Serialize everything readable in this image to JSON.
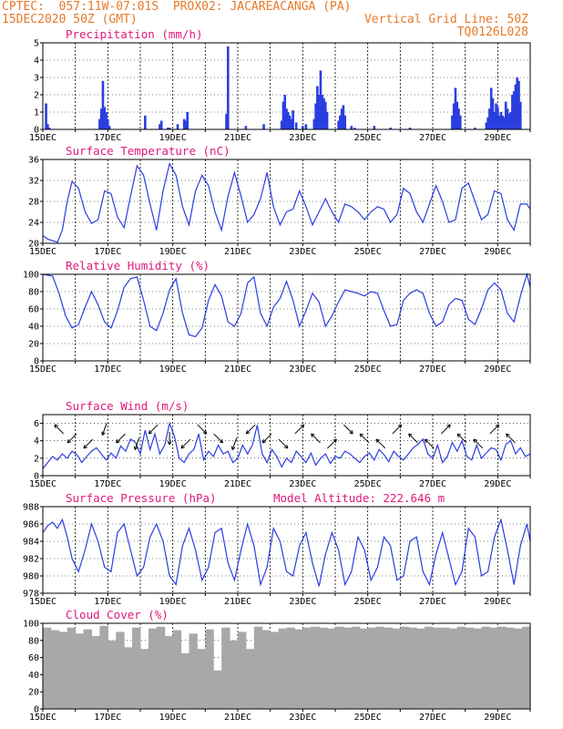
{
  "header": {
    "left_line1": "CPTEC:  057:11W-07:01S  PROX02: JACAREACANGA (PA)",
    "left_line2": "15DEC2020 50Z (GMT)",
    "right_line2": "Vertical Grid Line: 50Z",
    "right_line3": "TQ0126L028"
  },
  "colors": {
    "header": "#e8792a",
    "title": "#e0187a",
    "series": "#2a3ee0",
    "cloud": "#a8a8a8"
  },
  "chart_data": [
    {
      "type": "bar",
      "title": "Precipitation (mm/h)",
      "xlabels": [
        "15DEC",
        "17DEC",
        "19DEC",
        "21DEC",
        "23DEC",
        "25DEC",
        "27DEC",
        "29DEC"
      ],
      "x_range_days": [
        15,
        30
      ],
      "ylim": [
        0,
        5
      ],
      "yticks": [
        0,
        1,
        2,
        3,
        4,
        5
      ],
      "x": [
        15.1,
        15.15,
        15.2,
        16.75,
        16.8,
        16.85,
        16.9,
        16.95,
        17.0,
        17.05,
        18.15,
        18.6,
        18.65,
        18.85,
        18.9,
        19.15,
        19.35,
        19.4,
        19.45,
        20.65,
        20.7,
        21.25,
        21.8,
        22.35,
        22.4,
        22.45,
        22.5,
        22.55,
        22.6,
        22.65,
        22.7,
        22.8,
        23.0,
        23.1,
        23.35,
        23.4,
        23.45,
        23.5,
        23.55,
        23.6,
        23.65,
        23.7,
        23.75,
        24.1,
        24.15,
        24.2,
        24.25,
        24.3,
        24.5,
        24.6,
        25.2,
        25.7,
        26.3,
        27.6,
        27.65,
        27.7,
        27.75,
        27.8,
        27.85,
        28.3,
        28.65,
        28.7,
        28.75,
        28.8,
        28.85,
        28.9,
        28.95,
        29.0,
        29.05,
        29.1,
        29.15,
        29.2,
        29.25,
        29.3,
        29.35,
        29.4,
        29.45,
        29.5,
        29.55,
        29.6,
        29.65,
        29.7
      ],
      "values": [
        1.5,
        0.3,
        0.1,
        0.6,
        1.2,
        2.8,
        1.3,
        1.0,
        0.6,
        0.2,
        0.8,
        0.3,
        0.5,
        0.1,
        0.1,
        0.3,
        0.6,
        0.5,
        1.0,
        0.9,
        4.8,
        0.2,
        0.3,
        0.5,
        1.6,
        2.0,
        1.2,
        1.0,
        0.8,
        0.6,
        1.1,
        0.4,
        0.2,
        0.3,
        0.6,
        1.5,
        2.5,
        2.0,
        3.4,
        2.0,
        1.8,
        1.6,
        1.0,
        0.5,
        0.8,
        1.2,
        1.4,
        0.8,
        0.2,
        0.1,
        0.2,
        0.1,
        0.1,
        0.8,
        1.5,
        2.4,
        1.6,
        1.2,
        0.8,
        0.1,
        0.4,
        0.7,
        1.2,
        2.4,
        1.8,
        1.0,
        1.5,
        1.3,
        0.8,
        1.0,
        0.8,
        0.7,
        1.6,
        1.2,
        0.9,
        1.0,
        2.0,
        2.2,
        2.6,
        3.0,
        2.8,
        1.6
      ]
    },
    {
      "type": "line",
      "title": "Surface Temperature (nC)",
      "ylim": [
        20,
        36
      ],
      "yticks": [
        20,
        24,
        28,
        32,
        36
      ],
      "x": [
        15.0,
        15.15,
        15.3,
        15.45,
        15.6,
        15.75,
        15.9,
        16.1,
        16.3,
        16.5,
        16.7,
        16.9,
        17.1,
        17.3,
        17.5,
        17.7,
        17.9,
        18.1,
        18.3,
        18.5,
        18.7,
        18.9,
        19.1,
        19.3,
        19.5,
        19.7,
        19.9,
        20.1,
        20.3,
        20.5,
        20.7,
        20.9,
        21.1,
        21.3,
        21.5,
        21.7,
        21.9,
        22.1,
        22.3,
        22.5,
        22.7,
        22.9,
        23.1,
        23.3,
        23.5,
        23.7,
        23.9,
        24.1,
        24.3,
        24.5,
        24.7,
        24.9,
        25.1,
        25.3,
        25.5,
        25.7,
        25.9,
        26.1,
        26.3,
        26.5,
        26.7,
        26.9,
        27.1,
        27.3,
        27.5,
        27.7,
        27.9,
        28.1,
        28.3,
        28.5,
        28.7,
        28.9,
        29.1,
        29.3,
        29.5,
        29.7,
        29.9,
        30.0
      ],
      "values": [
        21.5,
        20.8,
        20.5,
        20.2,
        22.5,
        28.0,
        31.8,
        30.5,
        26.0,
        23.8,
        24.5,
        30.0,
        29.5,
        25.0,
        23.0,
        29.0,
        34.8,
        33.0,
        27.5,
        22.5,
        30.0,
        35.2,
        33.0,
        27.0,
        23.5,
        30.0,
        33.0,
        31.0,
        26.0,
        22.5,
        29.0,
        33.5,
        29.0,
        24.0,
        25.5,
        28.5,
        33.5,
        27.0,
        23.5,
        26.0,
        26.5,
        30.0,
        27.0,
        23.5,
        26.0,
        28.5,
        26.0,
        24.0,
        27.5,
        27.0,
        26.0,
        24.5,
        26.0,
        27.0,
        26.5,
        24.0,
        25.5,
        30.5,
        29.5,
        26.0,
        24.0,
        27.5,
        31.0,
        28.0,
        24.0,
        24.5,
        30.5,
        31.5,
        28.0,
        24.5,
        25.5,
        30.0,
        29.5,
        24.5,
        22.5,
        27.5,
        27.5,
        26.5
      ]
    },
    {
      "type": "line",
      "title": "Relative Humidity (%)",
      "ylim": [
        0,
        100
      ],
      "yticks": [
        0,
        20,
        40,
        60,
        80,
        100
      ],
      "x": [
        15.0,
        15.3,
        15.5,
        15.7,
        15.9,
        16.1,
        16.3,
        16.5,
        16.7,
        16.9,
        17.1,
        17.3,
        17.5,
        17.7,
        17.9,
        18.1,
        18.3,
        18.5,
        18.7,
        18.9,
        19.1,
        19.3,
        19.5,
        19.7,
        19.9,
        20.1,
        20.3,
        20.5,
        20.7,
        20.9,
        21.1,
        21.3,
        21.5,
        21.7,
        21.9,
        22.1,
        22.3,
        22.5,
        22.7,
        22.9,
        23.1,
        23.3,
        23.5,
        23.7,
        23.9,
        24.1,
        24.3,
        24.5,
        24.7,
        24.9,
        25.1,
        25.3,
        25.5,
        25.7,
        25.9,
        26.1,
        26.3,
        26.5,
        26.7,
        26.9,
        27.1,
        27.3,
        27.5,
        27.7,
        27.9,
        28.1,
        28.3,
        28.5,
        28.7,
        28.9,
        29.1,
        29.3,
        29.5,
        29.7,
        29.9,
        30.0
      ],
      "values": [
        100,
        98,
        78,
        52,
        38,
        42,
        62,
        80,
        65,
        45,
        38,
        58,
        85,
        95,
        97,
        70,
        40,
        35,
        55,
        82,
        95,
        55,
        30,
        28,
        38,
        70,
        88,
        75,
        45,
        40,
        55,
        90,
        97,
        55,
        40,
        62,
        72,
        92,
        70,
        40,
        58,
        78,
        68,
        40,
        52,
        68,
        82,
        80,
        78,
        75,
        80,
        78,
        58,
        40,
        42,
        70,
        78,
        82,
        78,
        55,
        40,
        45,
        65,
        72,
        70,
        48,
        42,
        60,
        82,
        90,
        82,
        55,
        45,
        75,
        100,
        85
      ]
    },
    {
      "type": "line",
      "title": "Surface Wind (m/s)",
      "ylim": [
        0,
        7
      ],
      "yticks": [
        0,
        2,
        4,
        6
      ],
      "x": [
        15.0,
        15.15,
        15.3,
        15.45,
        15.6,
        15.75,
        15.9,
        16.05,
        16.2,
        16.35,
        16.5,
        16.65,
        16.8,
        16.95,
        17.1,
        17.25,
        17.4,
        17.55,
        17.7,
        17.85,
        18.0,
        18.15,
        18.3,
        18.45,
        18.6,
        18.75,
        18.9,
        19.05,
        19.2,
        19.35,
        19.5,
        19.65,
        19.8,
        19.95,
        20.1,
        20.25,
        20.4,
        20.55,
        20.7,
        20.85,
        21.0,
        21.15,
        21.3,
        21.45,
        21.6,
        21.75,
        21.9,
        22.05,
        22.2,
        22.35,
        22.5,
        22.65,
        22.8,
        22.95,
        23.1,
        23.25,
        23.4,
        23.55,
        23.7,
        23.85,
        24.0,
        24.15,
        24.3,
        24.45,
        24.6,
        24.75,
        24.9,
        25.05,
        25.2,
        25.35,
        25.5,
        25.65,
        25.8,
        25.95,
        26.1,
        26.25,
        26.4,
        26.55,
        26.7,
        26.85,
        27.0,
        27.15,
        27.3,
        27.45,
        27.6,
        27.75,
        27.9,
        28.05,
        28.2,
        28.35,
        28.5,
        28.65,
        28.8,
        28.95,
        29.1,
        29.25,
        29.4,
        29.55,
        29.7,
        29.85,
        30.0
      ],
      "values": [
        0.8,
        1.5,
        2.2,
        1.8,
        2.5,
        2.0,
        2.8,
        2.4,
        1.5,
        2.2,
        2.8,
        3.2,
        2.5,
        1.8,
        2.6,
        2.0,
        3.4,
        2.8,
        4.2,
        3.8,
        2.5,
        5.2,
        3.0,
        4.8,
        2.5,
        3.5,
        6.0,
        4.5,
        2.0,
        1.5,
        2.5,
        3.0,
        4.8,
        1.8,
        2.8,
        2.2,
        3.5,
        2.5,
        2.8,
        1.5,
        2.0,
        3.5,
        2.5,
        3.5,
        5.8,
        2.5,
        1.5,
        3.0,
        2.2,
        1.0,
        2.0,
        1.5,
        2.8,
        2.2,
        1.5,
        2.6,
        1.2,
        2.0,
        2.5,
        1.4,
        2.2,
        2.0,
        2.8,
        2.5,
        2.0,
        1.5,
        2.2,
        2.6,
        1.8,
        3.0,
        2.4,
        1.6,
        2.8,
        2.2,
        1.8,
        2.5,
        3.2,
        3.6,
        4.2,
        2.5,
        2.0,
        3.5,
        1.5,
        2.2,
        3.8,
        2.8,
        4.0,
        2.2,
        1.8,
        3.5,
        2.0,
        2.6,
        3.2,
        3.0,
        1.8,
        3.6,
        4.0,
        2.5,
        3.2,
        2.2,
        2.5
      ]
    },
    {
      "type": "line",
      "title": "Surface Pressure (hPa)",
      "annotation": "Model Altitude: 222.646 m",
      "ylim": [
        978,
        988
      ],
      "yticks": [
        978,
        980,
        982,
        984,
        986,
        988
      ],
      "x": [
        15.0,
        15.15,
        15.3,
        15.45,
        15.6,
        15.75,
        15.9,
        16.1,
        16.3,
        16.5,
        16.7,
        16.9,
        17.1,
        17.3,
        17.5,
        17.7,
        17.9,
        18.1,
        18.3,
        18.5,
        18.7,
        18.9,
        19.1,
        19.3,
        19.5,
        19.7,
        19.9,
        20.1,
        20.3,
        20.5,
        20.7,
        20.9,
        21.1,
        21.3,
        21.5,
        21.7,
        21.9,
        22.1,
        22.3,
        22.5,
        22.7,
        22.9,
        23.1,
        23.3,
        23.5,
        23.7,
        23.9,
        24.1,
        24.3,
        24.5,
        24.7,
        24.9,
        25.1,
        25.3,
        25.5,
        25.7,
        25.9,
        26.1,
        26.3,
        26.5,
        26.7,
        26.9,
        27.1,
        27.3,
        27.5,
        27.7,
        27.9,
        28.1,
        28.3,
        28.5,
        28.7,
        28.9,
        29.1,
        29.3,
        29.5,
        29.7,
        29.9,
        30.0
      ],
      "values": [
        985.0,
        985.8,
        986.2,
        985.5,
        986.5,
        984.5,
        982.0,
        980.5,
        983.0,
        986.0,
        984.0,
        981.0,
        980.5,
        985.0,
        986.0,
        983.0,
        980.0,
        981.0,
        984.5,
        986.0,
        984.0,
        980.0,
        979.0,
        983.5,
        985.5,
        983.0,
        979.5,
        981.0,
        985.0,
        985.5,
        981.5,
        979.5,
        983.0,
        986.0,
        983.5,
        979.0,
        981.0,
        985.5,
        984.0,
        980.5,
        980.0,
        983.5,
        985.0,
        981.5,
        978.8,
        982.5,
        985.0,
        983.0,
        979.0,
        980.5,
        984.5,
        983.0,
        979.5,
        981.0,
        984.5,
        983.5,
        979.5,
        980.0,
        984.0,
        984.5,
        980.5,
        979.0,
        982.5,
        985.0,
        982.0,
        979.0,
        980.5,
        985.5,
        984.5,
        980.0,
        980.5,
        984.5,
        986.5,
        983.0,
        979.0,
        983.5,
        986.0,
        984.0
      ]
    },
    {
      "type": "bar",
      "title": "Cloud Cover (%)",
      "ylim": [
        0,
        100
      ],
      "yticks": [
        0,
        20,
        40,
        60,
        80,
        100
      ],
      "x": [
        15.0,
        15.25,
        15.5,
        15.75,
        16.0,
        16.25,
        16.5,
        16.75,
        17.0,
        17.25,
        17.5,
        17.75,
        18.0,
        18.25,
        18.5,
        18.75,
        19.0,
        19.25,
        19.5,
        19.75,
        20.0,
        20.25,
        20.5,
        20.75,
        21.0,
        21.25,
        21.5,
        21.75,
        22.0,
        22.25,
        22.5,
        22.75,
        23.0,
        23.25,
        23.5,
        23.75,
        24.0,
        24.25,
        24.5,
        24.75,
        25.0,
        25.25,
        25.5,
        25.75,
        26.0,
        26.25,
        26.5,
        26.75,
        27.0,
        27.25,
        27.5,
        27.75,
        28.0,
        28.25,
        28.5,
        28.75,
        29.0,
        29.25,
        29.5,
        29.75
      ],
      "values": [
        95,
        92,
        90,
        95,
        88,
        93,
        85,
        97,
        80,
        90,
        72,
        95,
        70,
        94,
        96,
        85,
        92,
        65,
        88,
        70,
        93,
        45,
        95,
        80,
        90,
        70,
        96,
        92,
        90,
        94,
        95,
        93,
        95,
        96,
        95,
        94,
        96,
        95,
        96,
        94,
        95,
        96,
        95,
        94,
        96,
        95,
        94,
        96,
        95,
        95,
        94,
        96,
        95,
        94,
        96,
        95,
        96,
        95,
        94,
        96
      ]
    }
  ],
  "xlabels": [
    "15DEC",
    "17DEC",
    "19DEC",
    "21DEC",
    "23DEC",
    "25DEC",
    "27DEC",
    "29DEC"
  ],
  "wind_arrows": {
    "x": [
      15.5,
      15.9,
      16.4,
      16.9,
      17.4,
      17.9,
      18.4,
      18.9,
      19.4,
      19.9,
      20.4,
      20.9,
      21.4,
      21.9,
      22.4,
      22.9,
      23.4,
      23.9,
      24.4,
      24.9,
      25.4,
      25.9,
      26.4,
      26.9,
      27.4,
      27.9,
      28.4,
      28.9,
      29.4
    ],
    "direction_deg": [
      315,
      225,
      225,
      200,
      225,
      200,
      225,
      180,
      225,
      135,
      135,
      200,
      225,
      225,
      135,
      45,
      315,
      45,
      135,
      315,
      315,
      45,
      315,
      315,
      45,
      315,
      315,
      45,
      315
    ]
  }
}
